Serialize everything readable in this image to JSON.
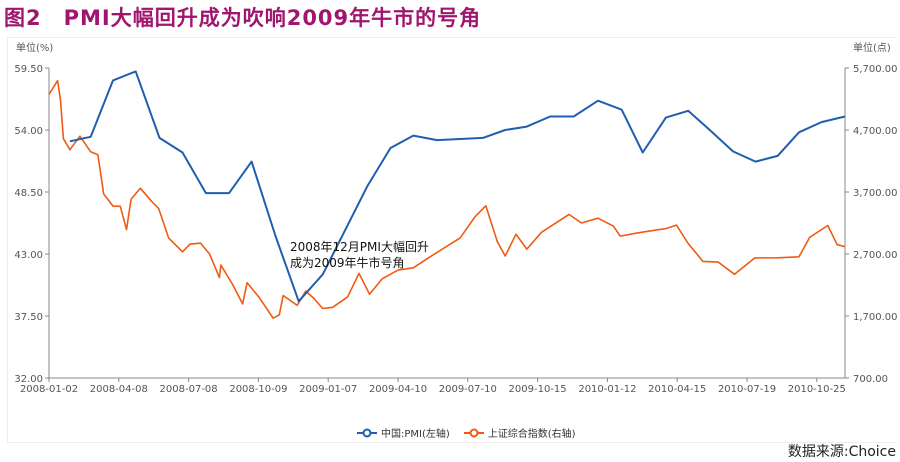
{
  "title": "图2　PMI大幅回升成为吹响2009年牛市的号角",
  "source": "数据来源:Choice",
  "chart_data": {
    "type": "line",
    "title": "图2　PMI大幅回升成为吹响2009年牛市的号角",
    "left_axis": {
      "unit_label": "单位(%)",
      "ylim": [
        32.0,
        59.5
      ],
      "ticks": [
        "59.50",
        "54.00",
        "48.50",
        "43.00",
        "37.50",
        "32.00"
      ]
    },
    "right_axis": {
      "unit_label": "单位(点)",
      "ylim": [
        700,
        5700
      ],
      "ticks": [
        "5,700.00",
        "4,700.00",
        "3,700.00",
        "2,700.00",
        "1,700.00",
        "700.00"
      ]
    },
    "x_ticks": [
      "2008-01-02",
      "2008-04-08",
      "2008-07-08",
      "2008-10-09",
      "2009-01-07",
      "2009-04-10",
      "2009-07-10",
      "2009-10-15",
      "2010-01-12",
      "2010-04-15",
      "2010-07-19",
      "2010-10-25"
    ],
    "grid": false,
    "legend_position": "bottom",
    "annotation": [
      "2008年12月PMI大幅回升",
      "成为2009年牛市号角"
    ],
    "series": [
      {
        "name": "中国:PMI(左轴)",
        "axis": "left",
        "color": "#1f5fad",
        "points": [
          [
            "2008-01-31",
            53.0
          ],
          [
            "2008-02-29",
            53.4
          ],
          [
            "2008-03-31",
            58.4
          ],
          [
            "2008-04-30",
            59.2
          ],
          [
            "2008-05-31",
            53.3
          ],
          [
            "2008-06-30",
            52.0
          ],
          [
            "2008-07-31",
            48.4
          ],
          [
            "2008-08-31",
            48.4
          ],
          [
            "2008-09-30",
            51.2
          ],
          [
            "2008-10-31",
            44.6
          ],
          [
            "2008-11-30",
            38.8
          ],
          [
            "2008-12-31",
            41.2
          ],
          [
            "2009-01-31",
            45.3
          ],
          [
            "2009-02-28",
            49.0
          ],
          [
            "2009-03-31",
            52.4
          ],
          [
            "2009-04-30",
            53.5
          ],
          [
            "2009-05-31",
            53.1
          ],
          [
            "2009-06-30",
            53.2
          ],
          [
            "2009-07-31",
            53.3
          ],
          [
            "2009-08-31",
            54.0
          ],
          [
            "2009-09-30",
            54.3
          ],
          [
            "2009-10-31",
            55.2
          ],
          [
            "2009-11-30",
            55.2
          ],
          [
            "2009-12-31",
            56.6
          ],
          [
            "2010-01-31",
            55.8
          ],
          [
            "2010-02-28",
            52.0
          ],
          [
            "2010-03-31",
            55.1
          ],
          [
            "2010-04-30",
            55.7
          ],
          [
            "2010-05-31",
            53.9
          ],
          [
            "2010-06-30",
            52.1
          ],
          [
            "2010-07-31",
            51.2
          ],
          [
            "2010-08-31",
            51.7
          ],
          [
            "2010-09-30",
            53.8
          ],
          [
            "2010-10-31",
            54.7
          ],
          [
            "2010-11-30",
            55.2
          ]
        ]
      },
      {
        "name": "上证综合指数(右轴)",
        "axis": "right",
        "color": "#f05a14",
        "points": [
          [
            "2008-01-02",
            5272
          ],
          [
            "2008-01-14",
            5497
          ],
          [
            "2008-01-18",
            5180
          ],
          [
            "2008-01-22",
            4559
          ],
          [
            "2008-01-31",
            4383
          ],
          [
            "2008-02-14",
            4600
          ],
          [
            "2008-02-29",
            4348
          ],
          [
            "2008-03-10",
            4300
          ],
          [
            "2008-03-18",
            3668
          ],
          [
            "2008-03-31",
            3472
          ],
          [
            "2008-04-10",
            3470
          ],
          [
            "2008-04-18",
            3094
          ],
          [
            "2008-04-24",
            3583
          ],
          [
            "2008-05-06",
            3761
          ],
          [
            "2008-05-20",
            3560
          ],
          [
            "2008-05-30",
            3433
          ],
          [
            "2008-06-12",
            2957
          ],
          [
            "2008-06-30",
            2736
          ],
          [
            "2008-07-10",
            2860
          ],
          [
            "2008-07-24",
            2874
          ],
          [
            "2008-08-05",
            2700
          ],
          [
            "2008-08-18",
            2319
          ],
          [
            "2008-08-20",
            2523
          ],
          [
            "2008-09-05",
            2200
          ],
          [
            "2008-09-18",
            1895
          ],
          [
            "2008-09-24",
            2236
          ],
          [
            "2008-10-10",
            2000
          ],
          [
            "2008-10-28",
            1664
          ],
          [
            "2008-11-05",
            1720
          ],
          [
            "2008-11-10",
            2030
          ],
          [
            "2008-11-28",
            1871
          ],
          [
            "2008-12-09",
            2101
          ],
          [
            "2008-12-19",
            1990
          ],
          [
            "2008-12-31",
            1821
          ],
          [
            "2009-01-13",
            1840
          ],
          [
            "2009-02-02",
            2010
          ],
          [
            "2009-02-17",
            2389
          ],
          [
            "2009-03-03",
            2051
          ],
          [
            "2009-03-20",
            2300
          ],
          [
            "2009-04-10",
            2440
          ],
          [
            "2009-04-30",
            2477
          ],
          [
            "2009-05-20",
            2640
          ],
          [
            "2009-06-30",
            2959
          ],
          [
            "2009-07-20",
            3300
          ],
          [
            "2009-08-04",
            3478
          ],
          [
            "2009-08-20",
            2900
          ],
          [
            "2009-08-31",
            2667
          ],
          [
            "2009-09-15",
            3020
          ],
          [
            "2009-09-30",
            2779
          ],
          [
            "2009-10-20",
            3050
          ],
          [
            "2009-11-24",
            3338
          ],
          [
            "2009-12-10",
            3200
          ],
          [
            "2009-12-31",
            3277
          ],
          [
            "2010-01-20",
            3150
          ],
          [
            "2010-01-29",
            2989
          ],
          [
            "2010-02-26",
            3050
          ],
          [
            "2010-03-31",
            3109
          ],
          [
            "2010-04-14",
            3166
          ],
          [
            "2010-04-30",
            2870
          ],
          [
            "2010-05-20",
            2580
          ],
          [
            "2010-06-10",
            2570
          ],
          [
            "2010-07-02",
            2373
          ],
          [
            "2010-07-30",
            2637
          ],
          [
            "2010-08-31",
            2638
          ],
          [
            "2010-09-30",
            2655
          ],
          [
            "2010-10-15",
            2970
          ],
          [
            "2010-11-08",
            3159
          ],
          [
            "2010-11-20",
            2850
          ],
          [
            "2010-11-30",
            2820
          ]
        ]
      }
    ]
  }
}
